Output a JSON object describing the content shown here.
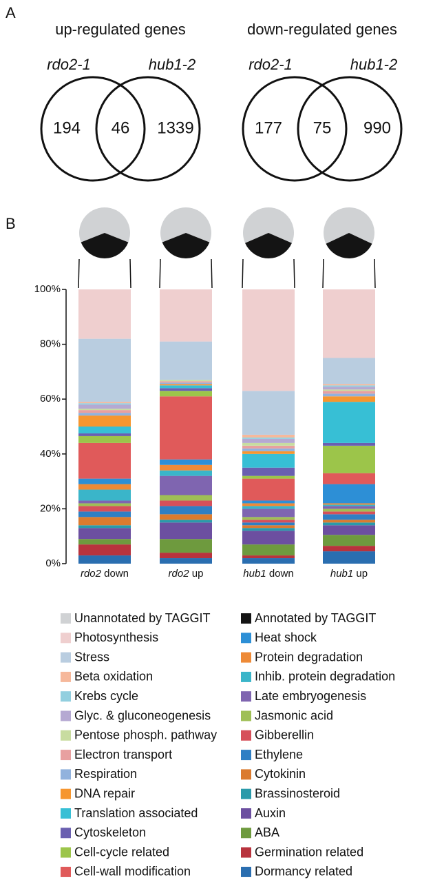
{
  "panel_labels": [
    "A",
    "B"
  ],
  "chart_data": [
    {
      "type": "venn",
      "title": "up-regulated genes",
      "sets": [
        "rdo2-1",
        "hub1-2"
      ],
      "values": [
        194,
        46,
        1339
      ]
    },
    {
      "type": "venn",
      "title": "down-regulated genes",
      "sets": [
        "rdo2-1",
        "hub1-2"
      ],
      "values": [
        177,
        75,
        990
      ]
    },
    {
      "type": "pie",
      "categories": [
        "Unannotated by TAGGIT",
        "Annotated by TAGGIT"
      ],
      "colors": [
        "#d0d2d4",
        "#141414"
      ],
      "series": [
        {
          "values": [
            62,
            38
          ]
        },
        {
          "values": [
            62,
            38
          ]
        },
        {
          "values": [
            63,
            37
          ]
        },
        {
          "values": [
            64,
            36
          ]
        }
      ]
    },
    {
      "type": "stacked-bar",
      "categories": [
        "rdo2 down",
        "rdo2 up",
        "hub1 down",
        "hub1 up"
      ],
      "ylim": [
        0,
        100
      ],
      "yticks": [
        {
          "value": 0,
          "label": "0%"
        },
        {
          "value": 20,
          "label": "20%"
        },
        {
          "value": 40,
          "label": "40%"
        },
        {
          "value": 60,
          "label": "60%"
        },
        {
          "value": 80,
          "label": "80%"
        },
        {
          "value": 100,
          "label": "100%"
        }
      ],
      "series": [
        {
          "name": "Photosynthesis",
          "color": "#efcfcf",
          "values": [
            18,
            19,
            37,
            25
          ]
        },
        {
          "name": "Stress",
          "color": "#b9cde0",
          "values": [
            23,
            14,
            16,
            9.5
          ]
        },
        {
          "name": "Beta oxidation",
          "color": "#f6b89b",
          "values": [
            0.5,
            0,
            1,
            0.5
          ]
        },
        {
          "name": "Krebs cycle",
          "color": "#92cfdf",
          "values": [
            0.5,
            0,
            0.5,
            0.5
          ]
        },
        {
          "name": "Glyc. & gluconeogenesis",
          "color": "#b5a9d2",
          "values": [
            1.5,
            0,
            1.5,
            1
          ]
        },
        {
          "name": "Pentose phosph. pathway",
          "color": "#c8dca0",
          "values": [
            0.5,
            0.5,
            1,
            0.5
          ]
        },
        {
          "name": "Electron transport",
          "color": "#e8a0a0",
          "values": [
            1,
            0.5,
            1,
            1
          ]
        },
        {
          "name": "Respiration",
          "color": "#91b2dd",
          "values": [
            1,
            0.5,
            1,
            1
          ]
        },
        {
          "name": "DNA repair",
          "color": "#f6962f",
          "values": [
            4,
            0.5,
            1,
            2
          ]
        },
        {
          "name": "Translation associated",
          "color": "#37bfd5",
          "values": [
            2.5,
            1,
            5,
            15
          ]
        },
        {
          "name": "Cytoskeleton",
          "color": "#6a5fb0",
          "values": [
            1,
            1,
            3,
            1
          ]
        },
        {
          "name": "Cell-cycle related",
          "color": "#9cc54a",
          "values": [
            2.5,
            2,
            1,
            10
          ]
        },
        {
          "name": "Cell-wall modification",
          "color": "#e05a5a",
          "values": [
            13,
            23,
            8,
            4
          ]
        },
        {
          "name": "Heat shock",
          "color": "#2d8fd6",
          "values": [
            2,
            2,
            1,
            7
          ]
        },
        {
          "name": "Protein degradation",
          "color": "#ee8a37",
          "values": [
            2,
            2,
            1,
            0.5
          ]
        },
        {
          "name": "Inhib. protein degradation",
          "color": "#3ab5c9",
          "values": [
            4,
            2,
            1,
            0.5
          ]
        },
        {
          "name": "Late embryogenesis",
          "color": "#7f65b0",
          "values": [
            1,
            7,
            3,
            1
          ]
        },
        {
          "name": "Jasmonic acid",
          "color": "#9fbf56",
          "values": [
            1,
            2,
            1,
            1
          ]
        },
        {
          "name": "Gibberellin",
          "color": "#d6505a",
          "values": [
            2,
            2,
            1,
            1
          ]
        },
        {
          "name": "Ethylene",
          "color": "#2f7fc4",
          "values": [
            2,
            3,
            1,
            2
          ]
        },
        {
          "name": "Cytokinin",
          "color": "#db7b2f",
          "values": [
            3,
            2,
            1,
            1
          ]
        },
        {
          "name": "Brassinosteroid",
          "color": "#2a9aaa",
          "values": [
            1,
            1,
            1,
            1
          ]
        },
        {
          "name": "Auxin",
          "color": "#6c4fa0",
          "values": [
            4,
            6,
            5,
            3.5
          ]
        },
        {
          "name": "ABA",
          "color": "#6e9a3e",
          "values": [
            2,
            5,
            4,
            4
          ]
        },
        {
          "name": "Germination related",
          "color": "#b8333d",
          "values": [
            4,
            2,
            1,
            2
          ]
        },
        {
          "name": "Dormancy related",
          "color": "#2a6eb0",
          "values": [
            3,
            2,
            2,
            4.5
          ]
        }
      ]
    }
  ]
}
